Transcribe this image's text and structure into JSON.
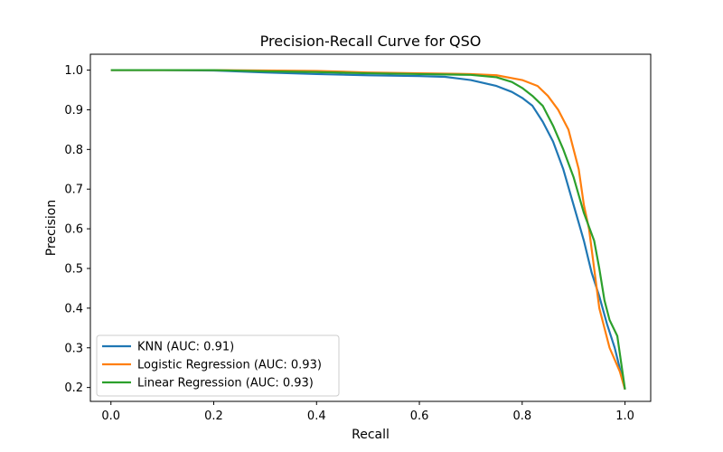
{
  "chart_data": {
    "type": "line",
    "title": "Precision-Recall Curve for QSO",
    "xlabel": "Recall",
    "ylabel": "Precision",
    "xlim": [
      -0.04,
      1.05
    ],
    "ylim": [
      0.165,
      1.04
    ],
    "xticks": [
      "0.0",
      "0.2",
      "0.4",
      "0.6",
      "0.8",
      "1.0"
    ],
    "yticks": [
      "0.2",
      "0.3",
      "0.4",
      "0.5",
      "0.6",
      "0.7",
      "0.8",
      "0.9",
      "1.0"
    ],
    "grid": false,
    "legend_position": "bottom-left",
    "series": [
      {
        "name": "KNN (AUC: 0.91)",
        "color": "#1f77b4",
        "points": [
          [
            0.0,
            1.0
          ],
          [
            0.1,
            1.0
          ],
          [
            0.2,
            0.999
          ],
          [
            0.3,
            0.994
          ],
          [
            0.4,
            0.99
          ],
          [
            0.5,
            0.987
          ],
          [
            0.6,
            0.985
          ],
          [
            0.65,
            0.983
          ],
          [
            0.7,
            0.975
          ],
          [
            0.75,
            0.96
          ],
          [
            0.78,
            0.945
          ],
          [
            0.8,
            0.93
          ],
          [
            0.82,
            0.91
          ],
          [
            0.84,
            0.87
          ],
          [
            0.86,
            0.82
          ],
          [
            0.88,
            0.75
          ],
          [
            0.9,
            0.66
          ],
          [
            0.92,
            0.57
          ],
          [
            0.935,
            0.49
          ],
          [
            0.95,
            0.43
          ],
          [
            0.965,
            0.36
          ],
          [
            0.98,
            0.3
          ],
          [
            1.0,
            0.195
          ]
        ]
      },
      {
        "name": "Logistic Regression (AUC: 0.93)",
        "color": "#ff7f0e",
        "points": [
          [
            0.0,
            1.0
          ],
          [
            0.1,
            1.0
          ],
          [
            0.2,
            1.0
          ],
          [
            0.3,
            0.999
          ],
          [
            0.4,
            0.998
          ],
          [
            0.5,
            0.994
          ],
          [
            0.6,
            0.992
          ],
          [
            0.7,
            0.99
          ],
          [
            0.75,
            0.987
          ],
          [
            0.8,
            0.975
          ],
          [
            0.83,
            0.96
          ],
          [
            0.85,
            0.935
          ],
          [
            0.87,
            0.9
          ],
          [
            0.89,
            0.85
          ],
          [
            0.9,
            0.8
          ],
          [
            0.91,
            0.75
          ],
          [
            0.92,
            0.66
          ],
          [
            0.93,
            0.6
          ],
          [
            0.94,
            0.5
          ],
          [
            0.95,
            0.4
          ],
          [
            0.97,
            0.3
          ],
          [
            0.99,
            0.24
          ],
          [
            1.0,
            0.195
          ]
        ]
      },
      {
        "name": "Linear Regression (AUC: 0.93)",
        "color": "#2ca02c",
        "points": [
          [
            0.0,
            1.0
          ],
          [
            0.1,
            1.0
          ],
          [
            0.2,
            1.0
          ],
          [
            0.3,
            0.997
          ],
          [
            0.4,
            0.995
          ],
          [
            0.5,
            0.992
          ],
          [
            0.6,
            0.99
          ],
          [
            0.7,
            0.988
          ],
          [
            0.75,
            0.982
          ],
          [
            0.78,
            0.97
          ],
          [
            0.8,
            0.955
          ],
          [
            0.82,
            0.935
          ],
          [
            0.84,
            0.91
          ],
          [
            0.86,
            0.86
          ],
          [
            0.88,
            0.8
          ],
          [
            0.9,
            0.73
          ],
          [
            0.92,
            0.64
          ],
          [
            0.94,
            0.57
          ],
          [
            0.95,
            0.5
          ],
          [
            0.96,
            0.42
          ],
          [
            0.97,
            0.37
          ],
          [
            0.985,
            0.33
          ],
          [
            1.0,
            0.195
          ]
        ]
      }
    ]
  }
}
